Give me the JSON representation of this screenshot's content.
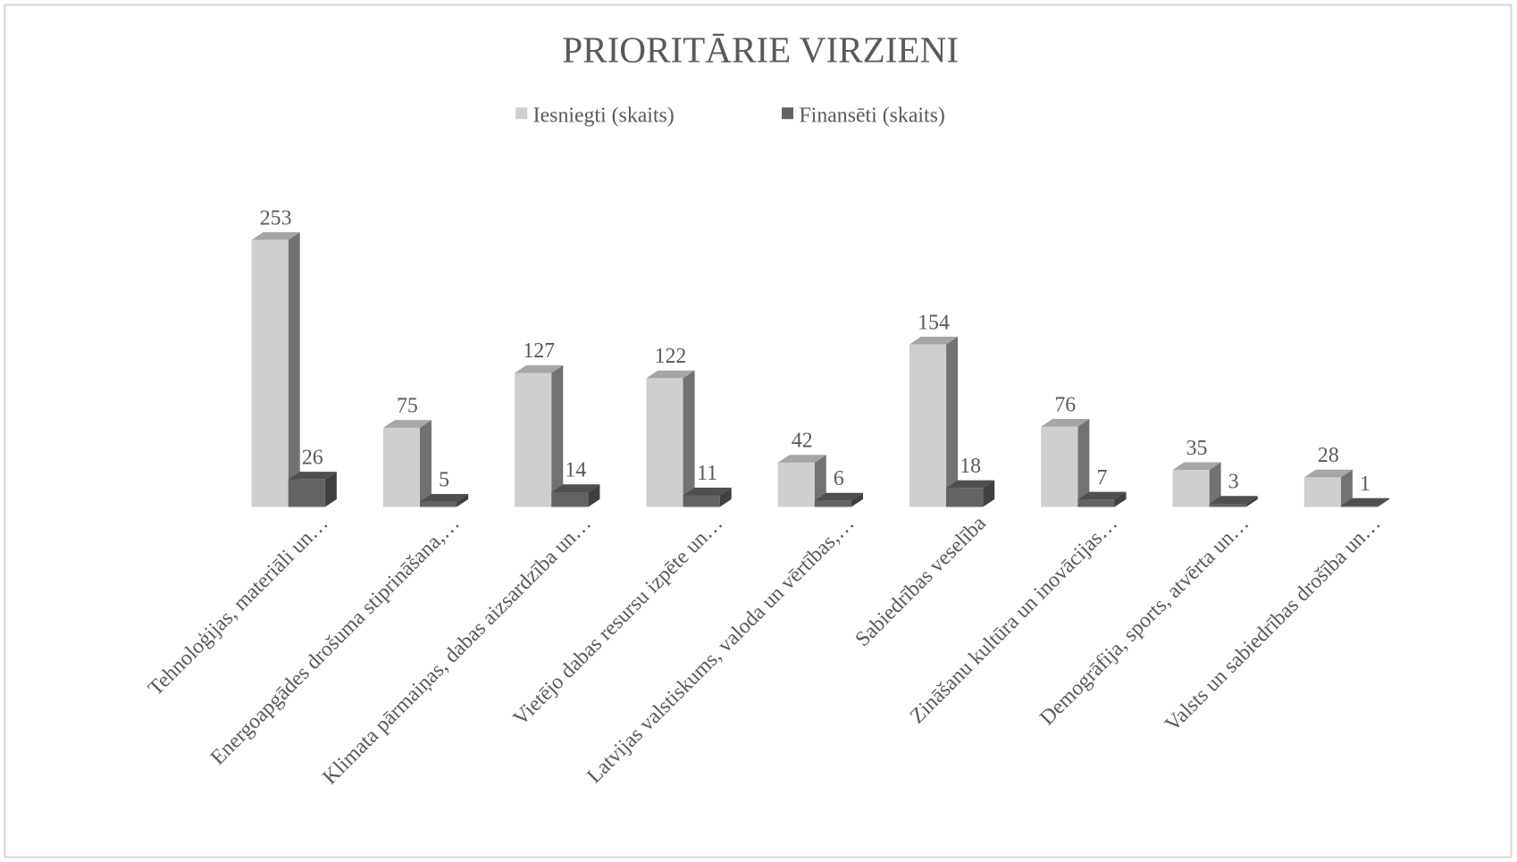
{
  "chart_data": {
    "type": "bar3d",
    "title": "PRIORITĀRIE VIRZIENI",
    "categories": [
      "Tehnoloģijas, materiāli un…",
      "Energoapgādes drošuma stiprināšana,…",
      "Klimata pārmaiņas, dabas aizsardzība un…",
      "Vietējo dabas resursu izpēte un…",
      "Latvijas valstiskums, valoda un vērtības,…",
      "Sabiedrības veselība",
      "Zināšanu kultūra un inovācijas…",
      "Demogrāfija, sports, atvērta un…",
      "Valsts un sabiedrības drošība un…"
    ],
    "series": [
      {
        "name": "Iesniegti (skaits)",
        "color": "#d0cfd0",
        "values": [
          253,
          75,
          127,
          122,
          42,
          154,
          76,
          35,
          28
        ]
      },
      {
        "name": "Finansēti (skaits)",
        "color": "#636363",
        "values": [
          26,
          5,
          14,
          11,
          6,
          18,
          7,
          3,
          1
        ]
      }
    ],
    "legend": "top",
    "data_labels": true
  }
}
